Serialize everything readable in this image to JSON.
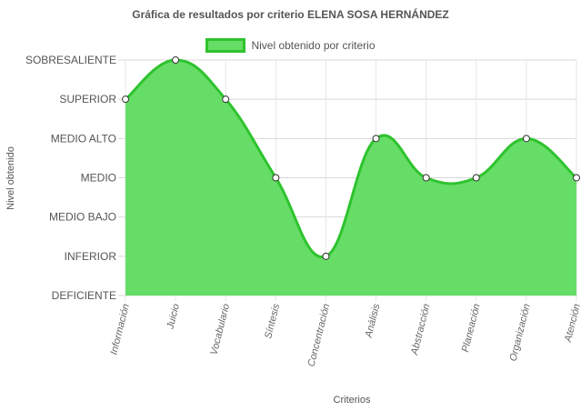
{
  "chart_data": {
    "type": "line",
    "title": "Gráfica de resultados por criterio ELENA SOSA HERNÁNDEZ",
    "xlabel": "Criterios",
    "ylabel": "Nivel obtenido",
    "y_levels": [
      "DEFICIENTE",
      "INFERIOR",
      "MEDIO BAJO",
      "MEDIO",
      "MEDIO ALTO",
      "SUPERIOR",
      "SOBRESALIENTE"
    ],
    "ylim": [
      0,
      6
    ],
    "categories": [
      "Información",
      "Juicio",
      "Vocabulario",
      "Síntesis",
      "Concentración",
      "Análisis",
      "Abstracción",
      "Planeación",
      "Organización",
      "Atención"
    ],
    "series": [
      {
        "name": "Nivel obtenido por criterio",
        "values": [
          5,
          6,
          5,
          3,
          1,
          4,
          3,
          3,
          4,
          3
        ],
        "fill": true,
        "fill_color": "#66dd66",
        "line_color": "#2ec32e"
      }
    ],
    "legend_position": "top",
    "grid": true
  }
}
